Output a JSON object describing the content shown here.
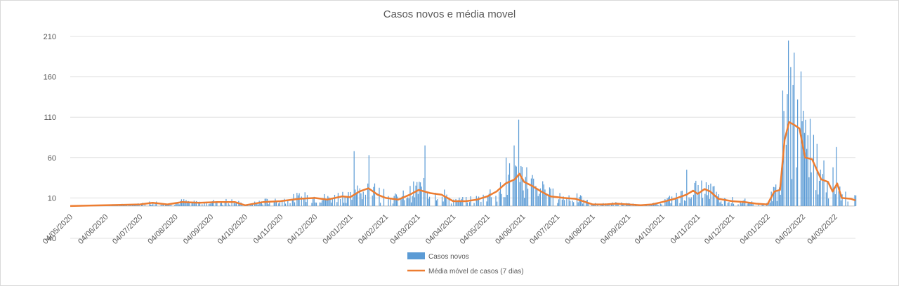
{
  "chart_data": {
    "type": "bar",
    "title": "Casos novos e média movel",
    "xlabel": "",
    "ylabel": "",
    "ylim": [
      -40,
      210
    ],
    "yticks": [
      -40,
      10,
      60,
      110,
      160,
      210
    ],
    "xlim": [
      "04/05/2020",
      "22/03/2022"
    ],
    "xticks": [
      "04/05/2020",
      "04/06/2020",
      "04/07/2020",
      "04/08/2020",
      "04/09/2020",
      "04/10/2020",
      "04/11/2020",
      "04/12/2020",
      "04/01/2021",
      "04/02/2021",
      "04/03/2021",
      "04/04/2021",
      "04/05/2021",
      "04/06/2021",
      "04/07/2021",
      "04/08/2021",
      "04/09/2021",
      "04/10/2021",
      "04/11/2021",
      "04/12/2021",
      "04/01/2022",
      "04/02/2022",
      "04/03/2022"
    ],
    "legend_position": "bottom",
    "grid": true,
    "series": [
      {
        "name": "Casos novos",
        "type": "bar",
        "color": "#5b9bd5",
        "note_values": "daily values approximated from the figure",
        "peaks": [
          {
            "x": "07/01/2021",
            "y": 68
          },
          {
            "x": "20/01/2021",
            "y": 63
          },
          {
            "x": "10/03/2021",
            "y": 75
          },
          {
            "x": "20/05/2021",
            "y": 60
          },
          {
            "x": "27/05/2021",
            "y": 75
          },
          {
            "x": "31/05/2021",
            "y": 107
          },
          {
            "x": "25/10/2021",
            "y": 45
          },
          {
            "x": "17/01/2022",
            "y": 143
          },
          {
            "x": "22/01/2022",
            "y": 205
          },
          {
            "x": "24/01/2022",
            "y": 172
          },
          {
            "x": "27/01/2022",
            "y": 190
          },
          {
            "x": "30/01/2022",
            "y": 132
          },
          {
            "x": "04/02/2022",
            "y": 118
          },
          {
            "x": "10/02/2022",
            "y": 108
          },
          {
            "x": "02/03/2022",
            "y": 48
          },
          {
            "x": "05/03/2022",
            "y": 73
          }
        ]
      },
      {
        "name": "Média móvel de casos (7 dias)",
        "type": "line",
        "color": "#ed7d31",
        "points": [
          {
            "x": "04/05/2020",
            "y": 0
          },
          {
            "x": "04/06/2020",
            "y": 1
          },
          {
            "x": "04/07/2020",
            "y": 2
          },
          {
            "x": "15/07/2020",
            "y": 4
          },
          {
            "x": "28/07/2020",
            "y": 2
          },
          {
            "x": "10/08/2020",
            "y": 5
          },
          {
            "x": "25/08/2020",
            "y": 4
          },
          {
            "x": "10/09/2020",
            "y": 5
          },
          {
            "x": "25/09/2020",
            "y": 5
          },
          {
            "x": "04/10/2020",
            "y": 1
          },
          {
            "x": "20/10/2020",
            "y": 5
          },
          {
            "x": "04/11/2020",
            "y": 6
          },
          {
            "x": "20/11/2020",
            "y": 9
          },
          {
            "x": "04/12/2020",
            "y": 10
          },
          {
            "x": "15/12/2020",
            "y": 8
          },
          {
            "x": "28/12/2020",
            "y": 12
          },
          {
            "x": "04/01/2021",
            "y": 11
          },
          {
            "x": "12/01/2021",
            "y": 18
          },
          {
            "x": "20/01/2021",
            "y": 22
          },
          {
            "x": "28/01/2021",
            "y": 14
          },
          {
            "x": "04/02/2021",
            "y": 10
          },
          {
            "x": "15/02/2021",
            "y": 8
          },
          {
            "x": "25/02/2021",
            "y": 14
          },
          {
            "x": "05/03/2021",
            "y": 20
          },
          {
            "x": "15/03/2021",
            "y": 16
          },
          {
            "x": "25/03/2021",
            "y": 14
          },
          {
            "x": "04/04/2021",
            "y": 6
          },
          {
            "x": "15/04/2021",
            "y": 6
          },
          {
            "x": "25/04/2021",
            "y": 8
          },
          {
            "x": "04/05/2021",
            "y": 12
          },
          {
            "x": "12/05/2021",
            "y": 18
          },
          {
            "x": "20/05/2021",
            "y": 28
          },
          {
            "x": "28/05/2021",
            "y": 33
          },
          {
            "x": "01/06/2021",
            "y": 40
          },
          {
            "x": "05/06/2021",
            "y": 30
          },
          {
            "x": "12/06/2021",
            "y": 25
          },
          {
            "x": "20/06/2021",
            "y": 18
          },
          {
            "x": "28/06/2021",
            "y": 12
          },
          {
            "x": "10/07/2021",
            "y": 10
          },
          {
            "x": "20/07/2021",
            "y": 9
          },
          {
            "x": "04/08/2021",
            "y": 2
          },
          {
            "x": "15/08/2021",
            "y": 2
          },
          {
            "x": "25/08/2021",
            "y": 3
          },
          {
            "x": "04/09/2021",
            "y": 2
          },
          {
            "x": "15/09/2021",
            "y": 1
          },
          {
            "x": "25/09/2021",
            "y": 2
          },
          {
            "x": "04/10/2021",
            "y": 5
          },
          {
            "x": "15/10/2021",
            "y": 9
          },
          {
            "x": "25/10/2021",
            "y": 14
          },
          {
            "x": "31/10/2021",
            "y": 19
          },
          {
            "x": "04/11/2021",
            "y": 15
          },
          {
            "x": "10/11/2021",
            "y": 21
          },
          {
            "x": "15/11/2021",
            "y": 18
          },
          {
            "x": "22/11/2021",
            "y": 9
          },
          {
            "x": "04/12/2021",
            "y": 6
          },
          {
            "x": "15/12/2021",
            "y": 5
          },
          {
            "x": "25/12/2021",
            "y": 3
          },
          {
            "x": "04/01/2022",
            "y": 2
          },
          {
            "x": "10/01/2022",
            "y": 18
          },
          {
            "x": "15/01/2022",
            "y": 20
          },
          {
            "x": "19/01/2022",
            "y": 82
          },
          {
            "x": "23/01/2022",
            "y": 104
          },
          {
            "x": "28/01/2022",
            "y": 100
          },
          {
            "x": "01/02/2022",
            "y": 96
          },
          {
            "x": "06/02/2022",
            "y": 60
          },
          {
            "x": "12/02/2022",
            "y": 58
          },
          {
            "x": "20/02/2022",
            "y": 33
          },
          {
            "x": "26/02/2022",
            "y": 30
          },
          {
            "x": "02/03/2022",
            "y": 18
          },
          {
            "x": "06/03/2022",
            "y": 28
          },
          {
            "x": "10/03/2022",
            "y": 10
          },
          {
            "x": "18/03/2022",
            "y": 9
          },
          {
            "x": "22/03/2022",
            "y": 7
          }
        ]
      }
    ]
  }
}
